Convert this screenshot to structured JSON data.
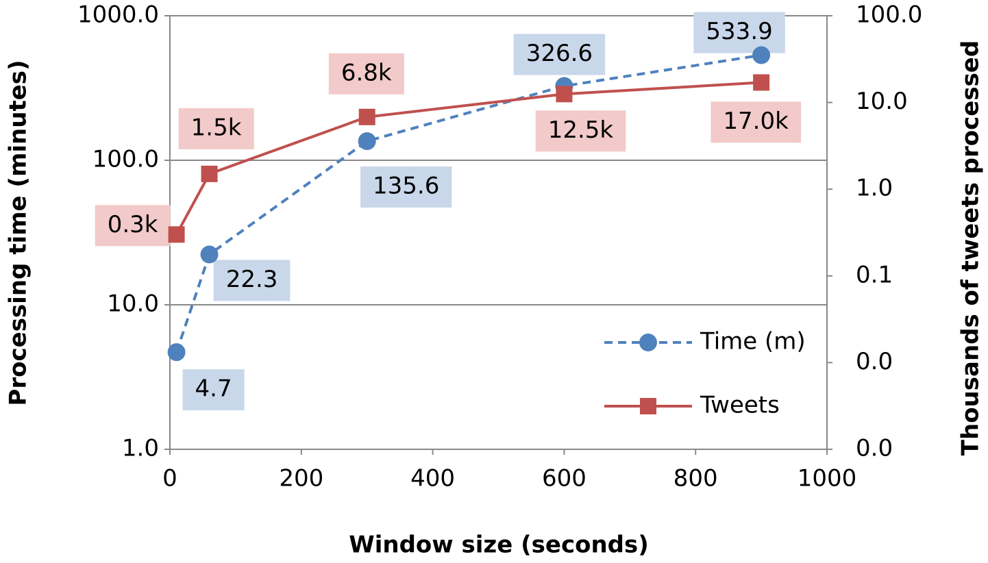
{
  "chart_data": {
    "type": "line",
    "xlabel": "Window size (seconds)",
    "ylabel": "Processing time (minutes)",
    "y2label": "Thousands of tweets processed",
    "x": [
      10,
      60,
      300,
      600,
      900
    ],
    "xlim": [
      0,
      1000
    ],
    "xticks": [
      0,
      200,
      400,
      600,
      800,
      1000
    ],
    "yscale": "log",
    "ylim": [
      1,
      1000
    ],
    "yticks": [
      {
        "value": 1,
        "label": "1.0"
      },
      {
        "value": 10,
        "label": "10.0"
      },
      {
        "value": 100,
        "label": "100.0"
      },
      {
        "value": 1000,
        "label": "1000.0"
      }
    ],
    "y2scale": "log",
    "y2lim": [
      0.001,
      100
    ],
    "y2ticks": [
      {
        "value": 0.001,
        "label": "0.0"
      },
      {
        "value": 0.01,
        "label": "0.0"
      },
      {
        "value": 0.1,
        "label": "0.1"
      },
      {
        "value": 1,
        "label": "1.0"
      },
      {
        "value": 10,
        "label": "10.0"
      },
      {
        "value": 100,
        "label": "100.0"
      }
    ],
    "grid": true,
    "legend": "lower right",
    "series": [
      {
        "name": "Time (m)",
        "color": "#4f81bd",
        "dash": true,
        "marker": "circle",
        "label_color": "#c9d7ea",
        "values": [
          4.7,
          22.3,
          135.6,
          326.6,
          533.9
        ]
      },
      {
        "name": "Tweets",
        "color": "#c0504d",
        "dash": false,
        "marker": "square",
        "axis": "y2",
        "label_color": "#f2caca",
        "values": [
          0.3,
          1.5,
          6.8,
          12.5,
          17.0
        ],
        "value_labels": [
          "0.3k",
          "1.5k",
          "6.8k",
          "12.5k",
          "17.0k"
        ]
      }
    ]
  }
}
